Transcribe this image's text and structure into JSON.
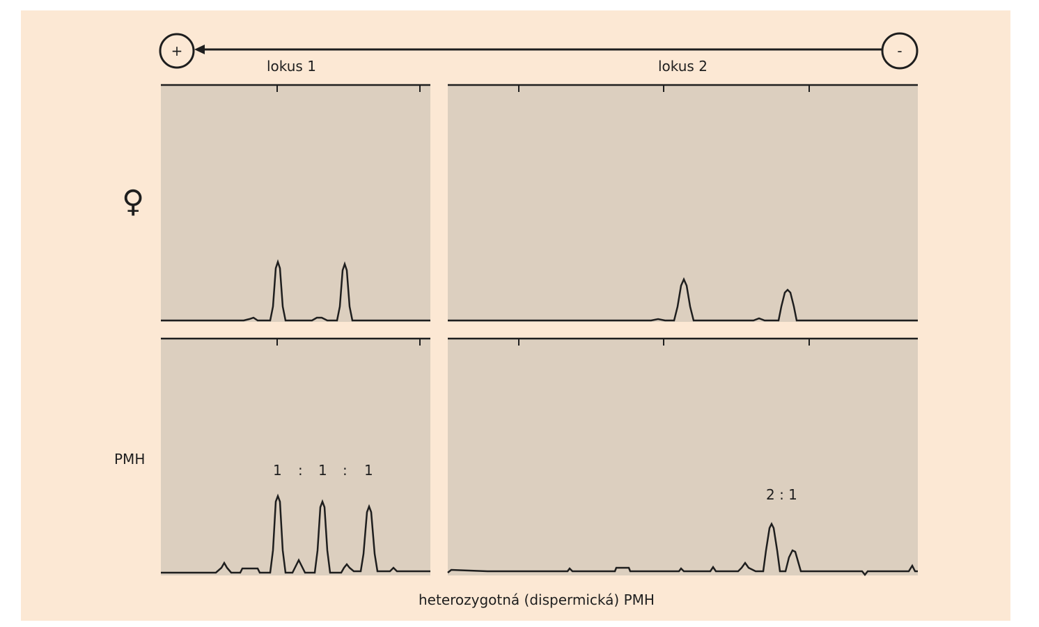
{
  "electrophoresis": {
    "anode_symbol": "+",
    "cathode_symbol": "-"
  },
  "loci": [
    {
      "label": "lokus 1"
    },
    {
      "label": "lokus 2"
    }
  ],
  "rows": [
    {
      "label": "♀"
    },
    {
      "label": "PMH"
    }
  ],
  "ratios": {
    "locus1": [
      "1",
      ":",
      "1",
      ":",
      "1"
    ],
    "locus2": "2 : 1"
  },
  "caption": "heterozygotná (dispermická) PMH",
  "colors": {
    "figure_background": "#fce8d4",
    "panel_fill": "#dccfbf",
    "trace": "#1e1e1e"
  }
}
